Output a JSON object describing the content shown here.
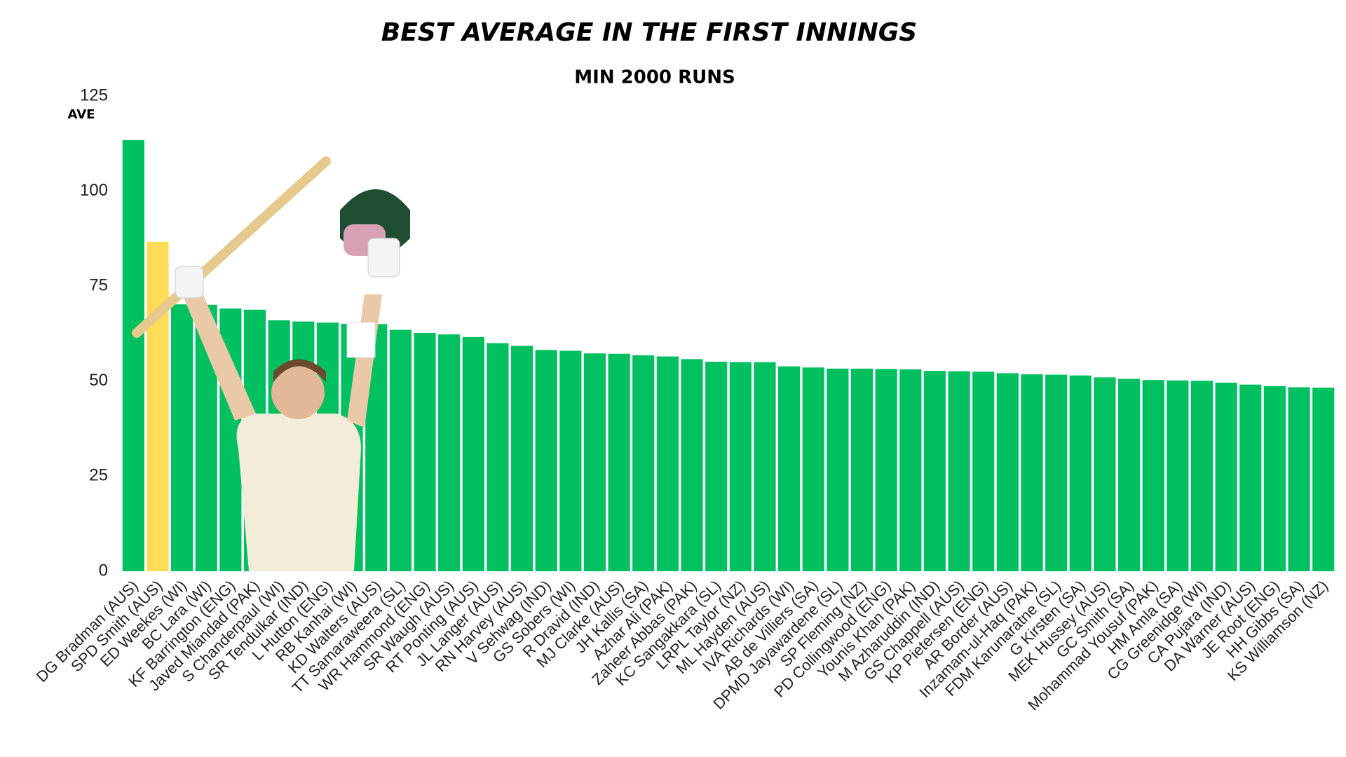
{
  "chart_data": {
    "type": "bar",
    "title": "BEST AVERAGE IN THE FIRST INNINGS",
    "subtitle": "MIN 2000 RUNS",
    "y_label": "AVE",
    "categories": [
      "DG Bradman (AUS)",
      "SPD Smith (AUS)",
      "ED Weekes (WI)",
      "BC Lara (WI)",
      "KF Barrington (ENG)",
      "Javed Miandad (PAK)",
      "S Chanderpaul (WI)",
      "SR Tendulkar (IND)",
      "L Hutton (ENG)",
      "RB Kanhai (WI)",
      "KD Walters (AUS)",
      "TT Samaraweera (SL)",
      "WR Hammond (ENG)",
      "SR Waugh (AUS)",
      "RT Ponting (AUS)",
      "JL Langer (AUS)",
      "RN Harvey (AUS)",
      "V Sehwag (IND)",
      "GS Sobers (WI)",
      "R Dravid (IND)",
      "MJ Clarke (AUS)",
      "JH Kallis (SA)",
      "Azhar Ali (PAK)",
      "Zaheer Abbas (PAK)",
      "KC Sangakkara (SL)",
      "LRPL Taylor (NZ)",
      "ML Hayden (AUS)",
      "IVA Richards (WI)",
      "AB de Villiers (SA)",
      "DPMD Jayawardene (SL)",
      "SP Fleming (NZ)",
      "PD Collingwood (ENG)",
      "Younis Khan (PAK)",
      "M Azharuddin (IND)",
      "GS Chappell (AUS)",
      "KP Pietersen (ENG)",
      "AR Border (AUS)",
      "Inzamam-ul-Haq (PAK)",
      "FDM Karunaratne (SL)",
      "G Kirsten (SA)",
      "MEK Hussey (AUS)",
      "GC Smith (SA)",
      "Mohammad Yousuf (PAK)",
      "HM Amla (SA)",
      "CG Greenidge (WI)",
      "CA Pujara (IND)",
      "DA Warner (AUS)",
      "JE Root (ENG)",
      "HH Gibbs (SA)",
      "KS Williamson (NZ)"
    ],
    "values": [
      113.4,
      86.7,
      70.2,
      70.1,
      69.1,
      68.8,
      66.0,
      65.7,
      65.4,
      65.1,
      65.0,
      63.5,
      62.7,
      62.3,
      61.6,
      60.0,
      59.3,
      58.2,
      58.0,
      57.3,
      57.2,
      56.8,
      56.5,
      55.8,
      55.1,
      55.0,
      55.0,
      53.9,
      53.6,
      53.3,
      53.3,
      53.2,
      53.1,
      52.7,
      52.6,
      52.5,
      52.1,
      51.8,
      51.7,
      51.5,
      51.0,
      50.6,
      50.3,
      50.2,
      50.1,
      49.6,
      49.1,
      48.7,
      48.4,
      48.3
    ],
    "colors": [
      "#00c060",
      "#ffdb58",
      "#00c060",
      "#00c060",
      "#00c060",
      "#00c060",
      "#00c060",
      "#00c060",
      "#00c060",
      "#00c060",
      "#00c060",
      "#00c060",
      "#00c060",
      "#00c060",
      "#00c060",
      "#00c060",
      "#00c060",
      "#00c060",
      "#00c060",
      "#00c060",
      "#00c060",
      "#00c060",
      "#00c060",
      "#00c060",
      "#00c060",
      "#00c060",
      "#00c060",
      "#00c060",
      "#00c060",
      "#00c060",
      "#00c060",
      "#00c060",
      "#00c060",
      "#00c060",
      "#00c060",
      "#00c060",
      "#00c060",
      "#00c060",
      "#00c060",
      "#00c060",
      "#00c060",
      "#00c060",
      "#00c060",
      "#00c060",
      "#00c060",
      "#00c060",
      "#00c060",
      "#00c060",
      "#00c060",
      "#00c060"
    ],
    "ylim": [
      0,
      125
    ],
    "yticks": [
      0,
      25,
      50,
      75,
      100,
      125
    ],
    "grid": false
  }
}
